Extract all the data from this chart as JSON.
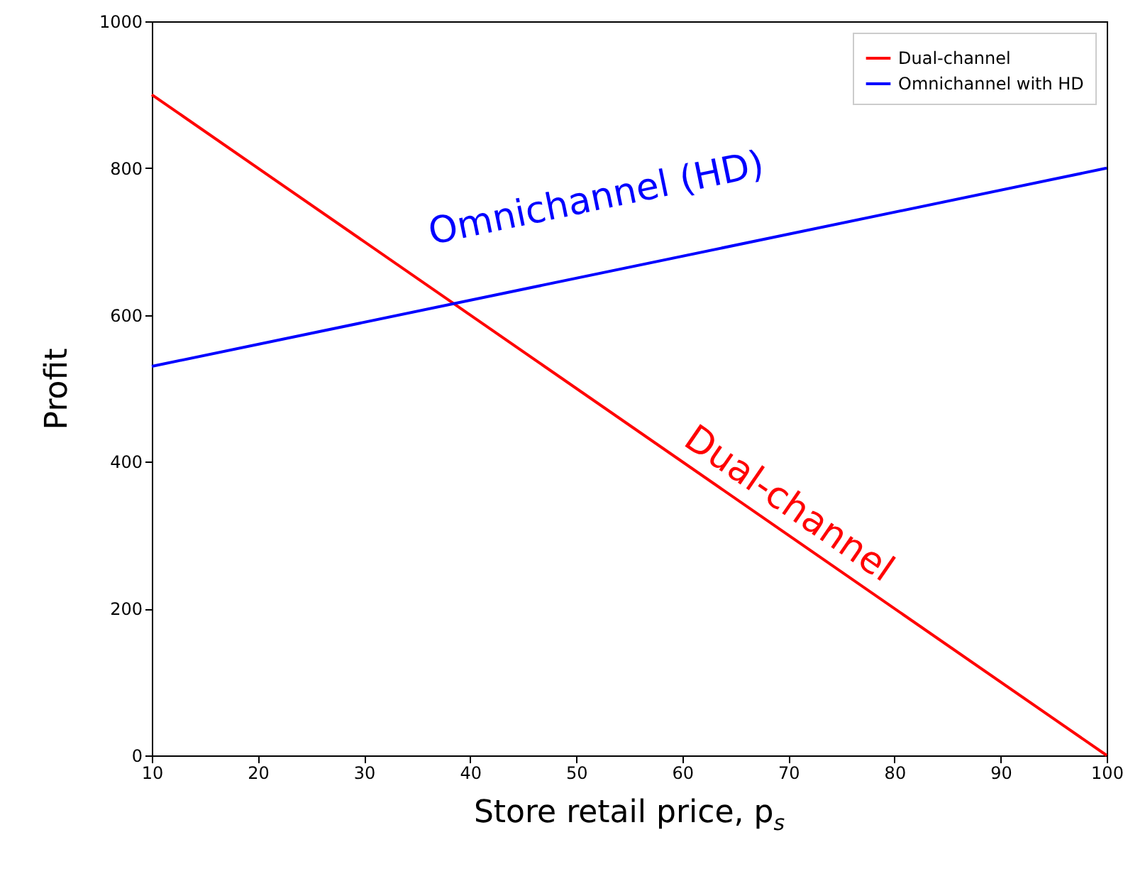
{
  "chart_data": {
    "type": "line",
    "xlabel": "Store retail price, p$_{s}$",
    "ylabel": "Profit",
    "x": [
      10,
      100
    ],
    "series": [
      {
        "name": "Dual-channel",
        "color": "#ff0000",
        "values": [
          900,
          0
        ]
      },
      {
        "name": "Omnichannel with HD",
        "color": "#0000ff",
        "values": [
          530,
          800
        ]
      }
    ],
    "annotations": [
      "Omnichannel (HD)",
      "Dual-channel"
    ],
    "xlim": [
      10,
      100
    ],
    "ylim": [
      0,
      1000
    ],
    "xticks": [
      10,
      20,
      30,
      40,
      50,
      60,
      70,
      80,
      90,
      100
    ],
    "yticks": [
      0,
      200,
      400,
      600,
      800,
      1000
    ],
    "grid": false,
    "legend": "top right",
    "marker": "none",
    "line_style": "solid"
  }
}
